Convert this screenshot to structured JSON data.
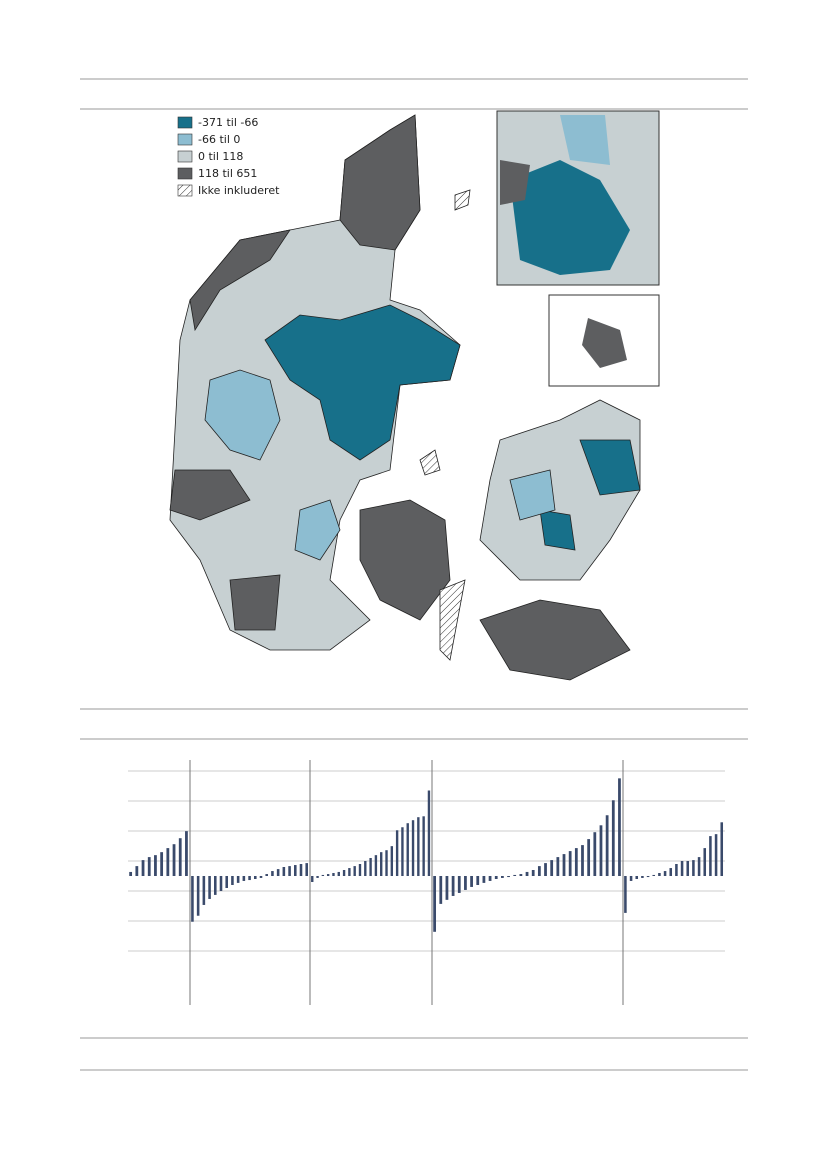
{
  "legend": [
    {
      "label": "-371 til -66",
      "color": "#17708a"
    },
    {
      "label": "-66 til 0",
      "color": "#8dbdd1"
    },
    {
      "label": "0 til 118",
      "color": "#c7d0d2"
    },
    {
      "label": "118 til 651",
      "color": "#5d5e60"
    },
    {
      "label": "Ikke inkluderet",
      "color": "hatch"
    }
  ],
  "chart_data": {
    "type": "bar",
    "color": "#3a4a6b",
    "ylim": [
      -860,
      740
    ],
    "yticks": [
      -500,
      -300,
      -100,
      100,
      300,
      500,
      700
    ],
    "grid": true,
    "groups": [
      {
        "values": [
          27,
          66,
          106,
          126,
          139,
          159,
          186,
          212,
          252,
          299
        ]
      },
      {
        "values": [
          -305,
          -265,
          -193,
          -153,
          -126,
          -100,
          -80,
          -60,
          -46,
          -33,
          -27,
          -20,
          -13,
          13,
          33,
          46,
          60,
          66,
          73,
          80,
          86
        ]
      },
      {
        "values": [
          -40,
          -13,
          7,
          13,
          20,
          27,
          40,
          53,
          66,
          80,
          100,
          120,
          139,
          159,
          172,
          199,
          305,
          325,
          352,
          372,
          392,
          398,
          570
        ]
      },
      {
        "values": [
          -372,
          -186,
          -159,
          -133,
          -113,
          -93,
          -73,
          -60,
          -46,
          -33,
          -20,
          -13,
          -7,
          7,
          13,
          27,
          40,
          66,
          86,
          106,
          126,
          146,
          166,
          186,
          206,
          246,
          292,
          338,
          405,
          505,
          651
        ]
      },
      {
        "values": [
          -246,
          -33,
          -20,
          -13,
          -7,
          7,
          20,
          33,
          53,
          80,
          100,
          100,
          106,
          126,
          186,
          266,
          279,
          358
        ]
      }
    ]
  }
}
